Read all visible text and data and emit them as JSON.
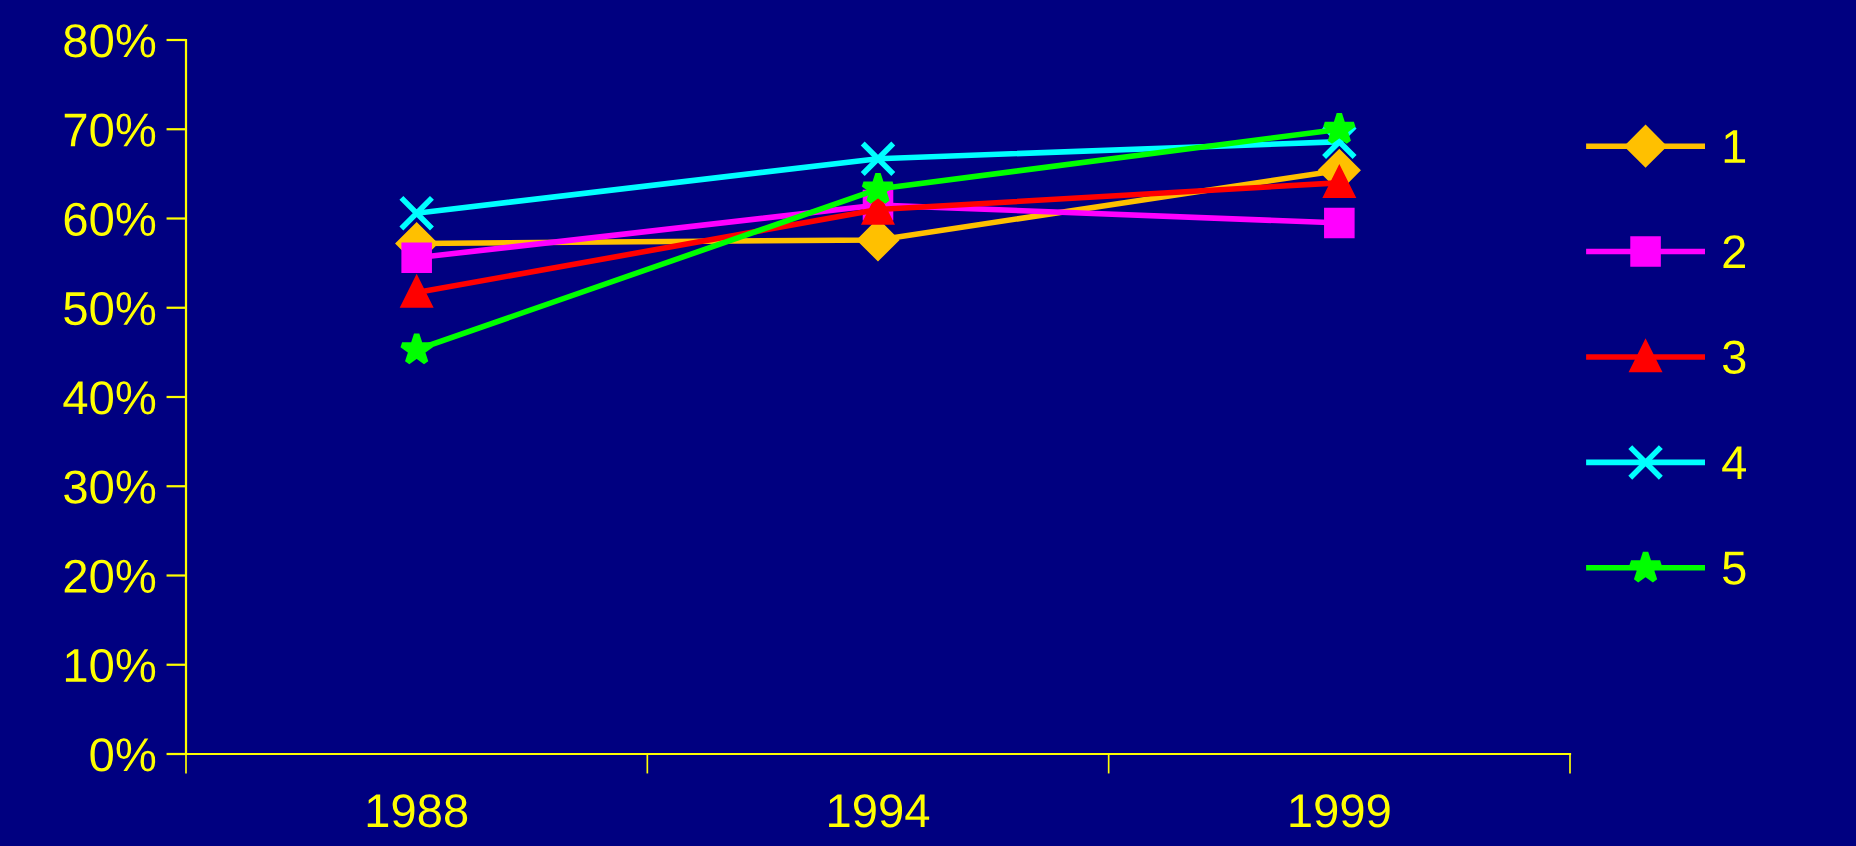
{
  "chart_data": {
    "type": "line",
    "categories": [
      "1988",
      "1994",
      "1999"
    ],
    "series": [
      {
        "name": "1",
        "color": "#ffc000",
        "marker": "diamond",
        "values": [
          57.2,
          57.6,
          65.4
        ]
      },
      {
        "name": "2",
        "color": "#ff00ff",
        "marker": "square",
        "values": [
          55.6,
          61.5,
          59.5
        ]
      },
      {
        "name": "3",
        "color": "#ff0000",
        "marker": "triangle",
        "values": [
          51.7,
          61.0,
          64.0
        ]
      },
      {
        "name": "4",
        "color": "#00ffff",
        "marker": "cross",
        "values": [
          60.6,
          66.7,
          68.6
        ]
      },
      {
        "name": "5",
        "color": "#00ff00",
        "marker": "star",
        "values": [
          45.3,
          63.3,
          70.0
        ]
      }
    ],
    "ylim": [
      0,
      80
    ],
    "yticks": [
      {
        "value": 0,
        "label": "0%"
      },
      {
        "value": 10,
        "label": "10%"
      },
      {
        "value": 20,
        "label": "20%"
      },
      {
        "value": 30,
        "label": "30%"
      },
      {
        "value": 40,
        "label": "40%"
      },
      {
        "value": 50,
        "label": "50%"
      },
      {
        "value": 60,
        "label": "60%"
      },
      {
        "value": 70,
        "label": "70%"
      },
      {
        "value": 80,
        "label": "80%"
      }
    ],
    "grid": false,
    "legend": "right",
    "line_style": "solid"
  }
}
